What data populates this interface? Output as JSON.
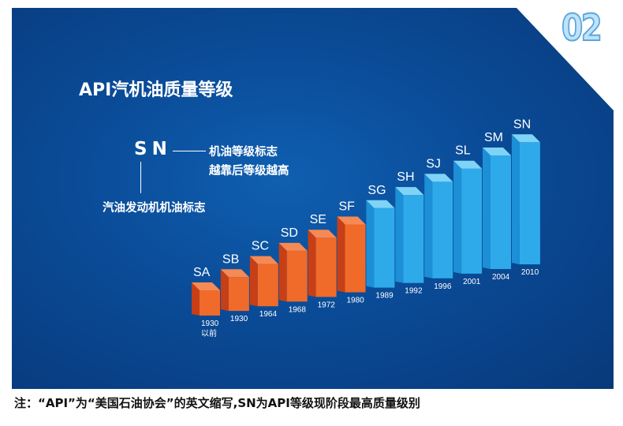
{
  "title": "API汽机油质量等级",
  "badge": "02",
  "legend": {
    "code": "SN",
    "right_line1": "机油等级标志",
    "right_line2": "越靠后等级越高",
    "bottom": "汽油发动机机油标志"
  },
  "note": "注：“API”为“美国石油协会”的英文缩写,SN为API等级现阶段最高质量级别",
  "colors": {
    "background": "#0a4b97",
    "older_grades": "#f06a2a",
    "newer_grades": "#2eaaea"
  },
  "chart_data": {
    "type": "bar",
    "title": "API汽机油质量等级",
    "categories": [
      "SA",
      "SB",
      "SC",
      "SD",
      "SE",
      "SF",
      "SG",
      "SH",
      "SJ",
      "SL",
      "SM",
      "SN"
    ],
    "year_labels": [
      "1930",
      "1930",
      "1964",
      "1968",
      "1972",
      "1980",
      "1989",
      "1992",
      "1996",
      "2001",
      "2004",
      "2010"
    ],
    "year_sublabels": [
      "以前",
      "",
      "",
      "",
      "",
      "",
      "",
      "",
      "",
      "",
      "",
      ""
    ],
    "groups": [
      "orange",
      "orange",
      "orange",
      "orange",
      "orange",
      "orange",
      "blue",
      "blue",
      "blue",
      "blue",
      "blue",
      "blue"
    ],
    "style": "3d-rising",
    "axes_shown": false,
    "grid": false
  }
}
